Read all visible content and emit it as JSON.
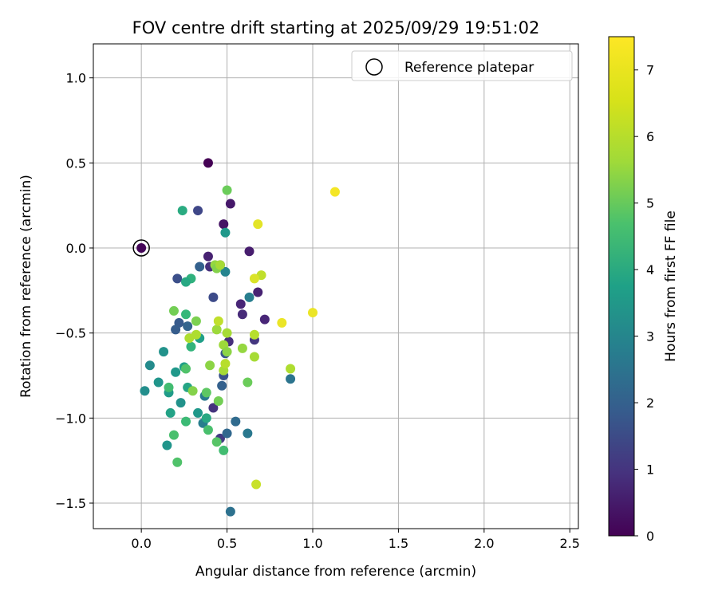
{
  "chart_data": {
    "type": "scatter",
    "title": "FOV centre drift starting at 2025/09/29 19:51:02",
    "xlabel": "Angular distance from reference (arcmin)",
    "ylabel": "Rotation from reference (arcmin)",
    "xlim": [
      -0.28,
      2.55
    ],
    "ylim": [
      -1.65,
      1.2
    ],
    "xticks": [
      0.0,
      0.5,
      1.0,
      1.5,
      2.0,
      2.5
    ],
    "xtick_labels": [
      "0.0",
      "0.5",
      "1.0",
      "1.5",
      "2.0",
      "2.5"
    ],
    "yticks": [
      -1.5,
      -1.0,
      -0.5,
      0.0,
      0.5,
      1.0
    ],
    "ytick_labels": [
      "−1.5",
      "−1.0",
      "−0.5",
      "0.0",
      "0.5",
      "1.0"
    ],
    "grid": true,
    "legend": {
      "label": "Reference platepar",
      "position": "top-right"
    },
    "reference_point": {
      "x": 0.0,
      "y": 0.0,
      "hours": 0.0
    },
    "colorbar": {
      "label": "Hours from first FF file",
      "min": 0,
      "max": 7.5,
      "ticks": [
        0,
        1,
        2,
        3,
        4,
        5,
        6,
        7
      ],
      "tick_labels": [
        "0",
        "1",
        "2",
        "3",
        "4",
        "5",
        "6",
        "7"
      ],
      "colormap": "viridis"
    },
    "points": [
      {
        "x": 0.0,
        "y": 0.0,
        "hours": 0.1
      },
      {
        "x": 0.39,
        "y": 0.5,
        "hours": 0.0
      },
      {
        "x": 0.48,
        "y": 0.14,
        "hours": 0.4
      },
      {
        "x": 0.52,
        "y": 0.26,
        "hours": 0.5
      },
      {
        "x": 0.63,
        "y": -0.02,
        "hours": 0.6
      },
      {
        "x": 0.39,
        "y": -0.05,
        "hours": 0.7
      },
      {
        "x": 0.46,
        "y": -0.1,
        "hours": 0.9
      },
      {
        "x": 0.4,
        "y": -0.11,
        "hours": 1.0
      },
      {
        "x": 0.58,
        "y": -0.33,
        "hours": 0.8
      },
      {
        "x": 0.68,
        "y": -0.26,
        "hours": 0.7
      },
      {
        "x": 0.59,
        "y": -0.39,
        "hours": 0.9
      },
      {
        "x": 0.72,
        "y": -0.42,
        "hours": 0.8
      },
      {
        "x": 0.66,
        "y": -0.54,
        "hours": 1.2
      },
      {
        "x": 0.51,
        "y": -0.55,
        "hours": 1.0
      },
      {
        "x": 0.42,
        "y": -0.94,
        "hours": 1.1
      },
      {
        "x": 0.46,
        "y": -1.12,
        "hours": 1.3
      },
      {
        "x": 0.33,
        "y": 0.22,
        "hours": 1.6
      },
      {
        "x": 0.21,
        "y": -0.18,
        "hours": 1.8
      },
      {
        "x": 0.42,
        "y": -0.29,
        "hours": 1.7
      },
      {
        "x": 0.34,
        "y": -0.11,
        "hours": 2.3
      },
      {
        "x": 0.22,
        "y": -0.44,
        "hours": 2.1
      },
      {
        "x": 0.27,
        "y": -0.46,
        "hours": 2.4
      },
      {
        "x": 0.2,
        "y": -0.48,
        "hours": 2.2
      },
      {
        "x": 0.49,
        "y": -0.62,
        "hours": 2.0
      },
      {
        "x": 0.48,
        "y": -0.75,
        "hours": 1.9
      },
      {
        "x": 0.47,
        "y": -0.81,
        "hours": 2.3
      },
      {
        "x": 0.5,
        "y": -1.09,
        "hours": 2.5
      },
      {
        "x": 0.55,
        "y": -1.02,
        "hours": 2.6
      },
      {
        "x": 0.52,
        "y": -1.55,
        "hours": 2.8
      },
      {
        "x": 0.62,
        "y": -1.09,
        "hours": 3.0
      },
      {
        "x": 0.87,
        "y": -0.77,
        "hours": 2.9
      },
      {
        "x": 0.63,
        "y": -0.29,
        "hours": 3.2
      },
      {
        "x": 0.49,
        "y": -0.14,
        "hours": 3.4
      },
      {
        "x": 0.36,
        "y": -1.03,
        "hours": 3.2
      },
      {
        "x": 0.37,
        "y": -0.87,
        "hours": 3.1
      },
      {
        "x": 0.05,
        "y": -0.69,
        "hours": 3.6
      },
      {
        "x": 0.02,
        "y": -0.84,
        "hours": 3.7
      },
      {
        "x": 0.13,
        "y": -0.61,
        "hours": 3.8
      },
      {
        "x": 0.1,
        "y": -0.79,
        "hours": 3.9
      },
      {
        "x": 0.16,
        "y": -0.85,
        "hours": 4.1
      },
      {
        "x": 0.17,
        "y": -0.97,
        "hours": 4.3
      },
      {
        "x": 0.15,
        "y": -1.16,
        "hours": 3.9
      },
      {
        "x": 0.2,
        "y": -0.73,
        "hours": 4.0
      },
      {
        "x": 0.23,
        "y": -0.91,
        "hours": 3.8
      },
      {
        "x": 0.25,
        "y": -0.7,
        "hours": 4.2
      },
      {
        "x": 0.27,
        "y": -0.82,
        "hours": 4.4
      },
      {
        "x": 0.33,
        "y": -0.97,
        "hours": 4.0
      },
      {
        "x": 0.38,
        "y": -1.0,
        "hours": 4.5
      },
      {
        "x": 0.49,
        "y": 0.09,
        "hours": 4.0
      },
      {
        "x": 0.24,
        "y": 0.22,
        "hours": 4.6
      },
      {
        "x": 0.29,
        "y": -0.18,
        "hours": 4.8
      },
      {
        "x": 0.26,
        "y": -0.2,
        "hours": 4.5
      },
      {
        "x": 0.26,
        "y": -0.39,
        "hours": 5.0
      },
      {
        "x": 0.29,
        "y": -0.58,
        "hours": 4.9
      },
      {
        "x": 0.34,
        "y": -0.53,
        "hours": 4.2
      },
      {
        "x": 0.16,
        "y": -0.82,
        "hours": 5.2
      },
      {
        "x": 0.26,
        "y": -0.71,
        "hours": 5.4
      },
      {
        "x": 0.26,
        "y": -1.02,
        "hours": 5.1
      },
      {
        "x": 0.19,
        "y": -1.1,
        "hours": 5.3
      },
      {
        "x": 0.21,
        "y": -1.26,
        "hours": 5.4
      },
      {
        "x": 0.39,
        "y": -1.07,
        "hours": 5.3
      },
      {
        "x": 0.44,
        "y": -1.14,
        "hours": 5.5
      },
      {
        "x": 0.48,
        "y": -1.19,
        "hours": 5.2
      },
      {
        "x": 0.38,
        "y": -0.85,
        "hours": 5.6
      },
      {
        "x": 0.5,
        "y": 0.34,
        "hours": 5.8
      },
      {
        "x": 0.19,
        "y": -0.37,
        "hours": 5.9
      },
      {
        "x": 0.32,
        "y": -0.43,
        "hours": 6.0
      },
      {
        "x": 0.3,
        "y": -0.84,
        "hours": 6.1
      },
      {
        "x": 0.45,
        "y": -0.9,
        "hours": 5.9
      },
      {
        "x": 0.62,
        "y": -0.79,
        "hours": 5.8
      },
      {
        "x": 0.4,
        "y": -0.69,
        "hours": 6.2
      },
      {
        "x": 0.43,
        "y": -0.1,
        "hours": 6.3
      },
      {
        "x": 0.44,
        "y": -0.12,
        "hours": 6.1
      },
      {
        "x": 0.46,
        "y": -0.1,
        "hours": 6.5
      },
      {
        "x": 0.44,
        "y": -0.48,
        "hours": 6.4
      },
      {
        "x": 0.5,
        "y": -0.5,
        "hours": 6.5
      },
      {
        "x": 0.48,
        "y": -0.57,
        "hours": 6.4
      },
      {
        "x": 0.5,
        "y": -0.61,
        "hours": 6.2
      },
      {
        "x": 0.59,
        "y": -0.59,
        "hours": 6.3
      },
      {
        "x": 0.48,
        "y": -0.72,
        "hours": 6.5
      },
      {
        "x": 0.49,
        "y": -0.68,
        "hours": 6.7
      },
      {
        "x": 0.28,
        "y": -0.53,
        "hours": 6.6
      },
      {
        "x": 0.32,
        "y": -0.51,
        "hours": 6.6
      },
      {
        "x": 0.45,
        "y": -0.43,
        "hours": 6.8
      },
      {
        "x": 0.66,
        "y": -0.51,
        "hours": 6.7
      },
      {
        "x": 0.66,
        "y": -0.64,
        "hours": 6.5
      },
      {
        "x": 0.7,
        "y": -0.16,
        "hours": 6.8
      },
      {
        "x": 0.87,
        "y": -0.71,
        "hours": 6.6
      },
      {
        "x": 0.67,
        "y": -1.39,
        "hours": 6.9
      },
      {
        "x": 0.68,
        "y": 0.14,
        "hours": 7.2
      },
      {
        "x": 0.66,
        "y": -0.18,
        "hours": 7.1
      },
      {
        "x": 0.82,
        "y": -0.44,
        "hours": 7.3
      },
      {
        "x": 1.0,
        "y": -0.38,
        "hours": 7.3
      },
      {
        "x": 1.13,
        "y": 0.33,
        "hours": 7.4
      }
    ]
  }
}
